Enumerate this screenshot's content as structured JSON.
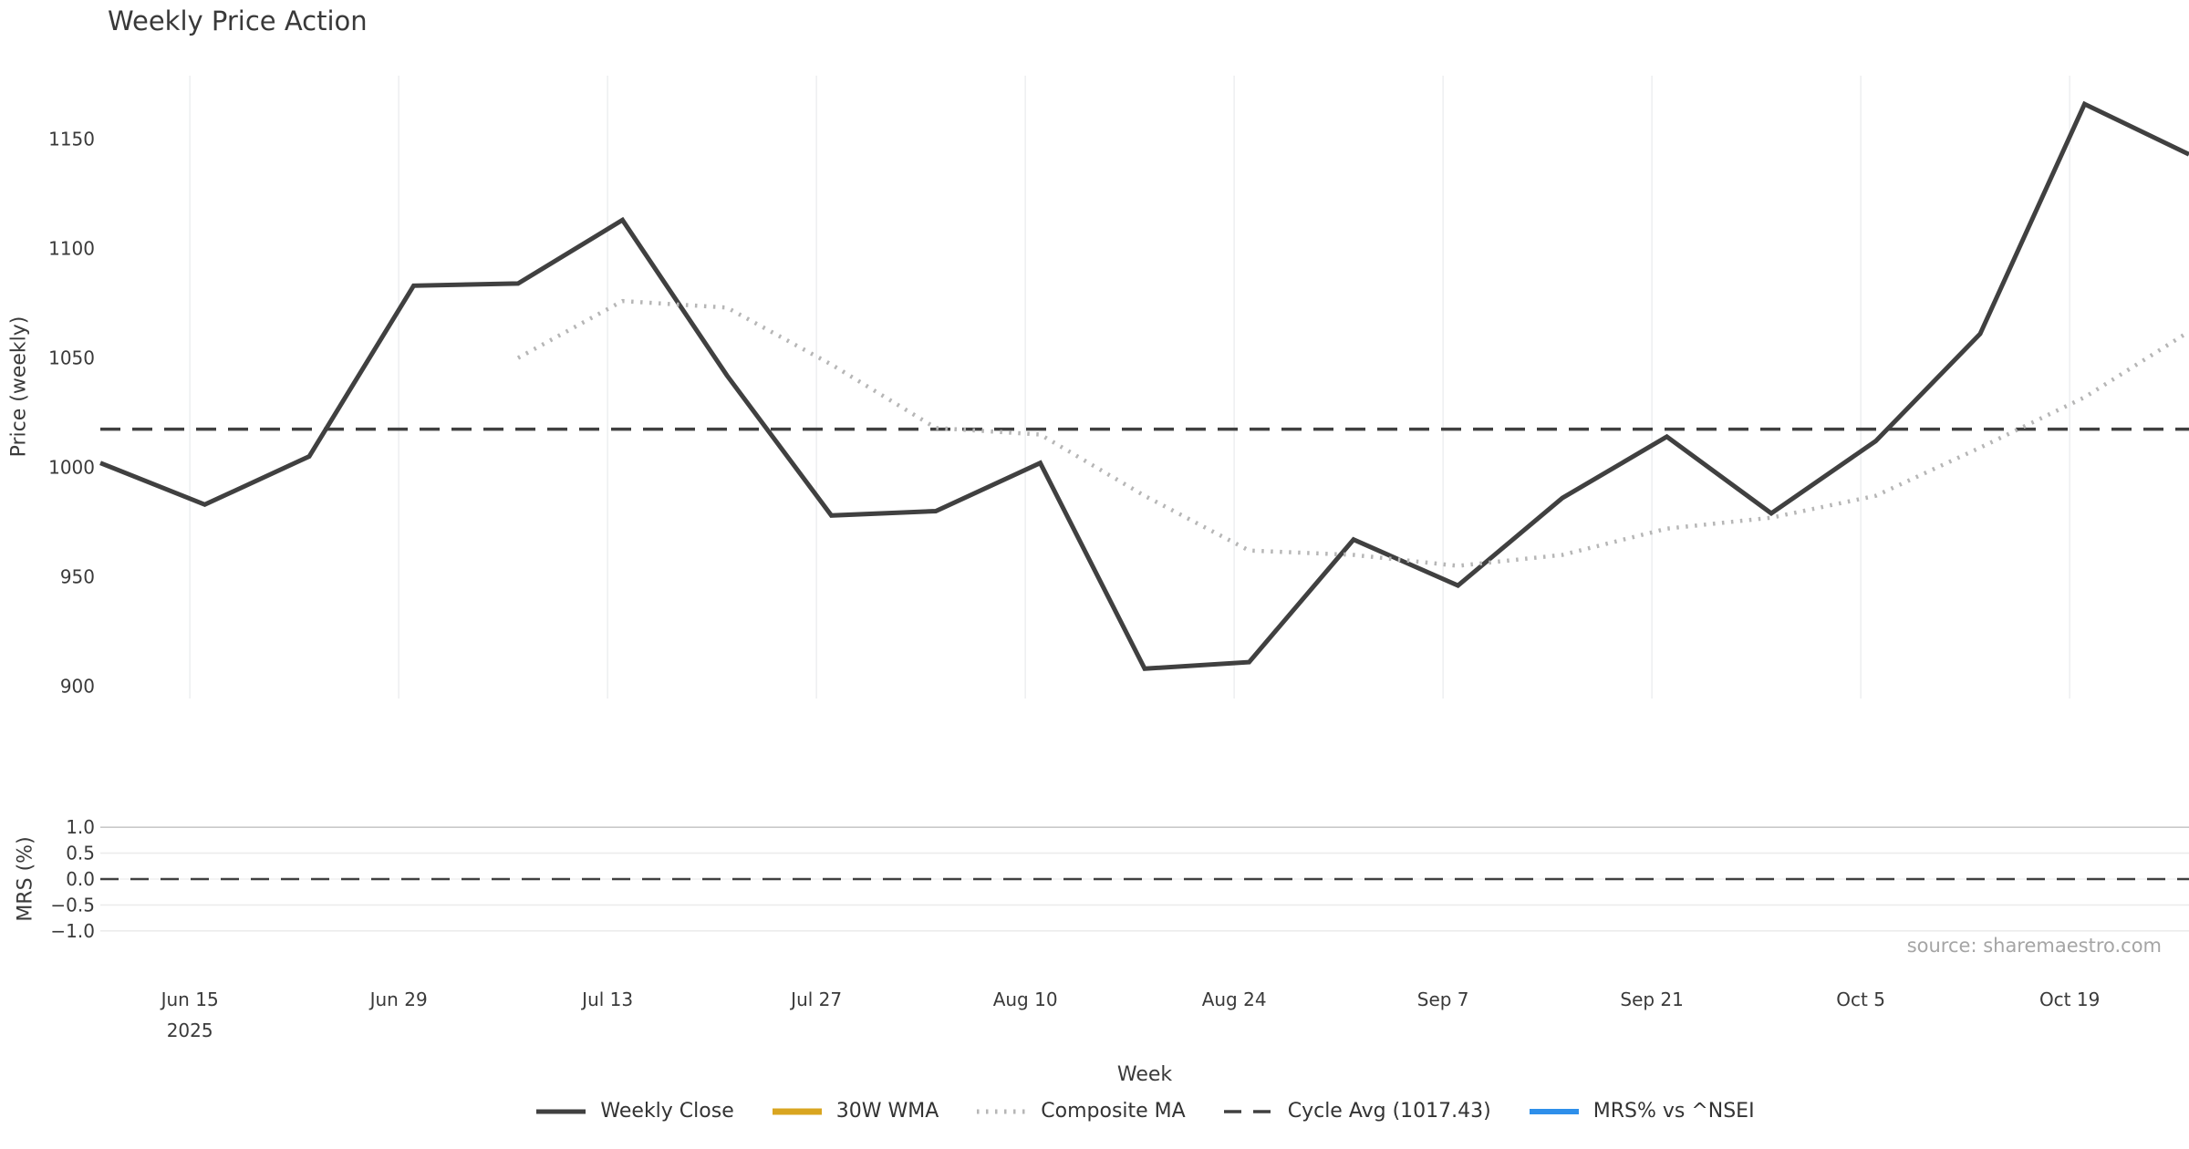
{
  "title": "Weekly Price Action",
  "source_note": "source: sharemaestro.com",
  "legend": {
    "position": "bottom",
    "items": [
      {
        "label": "Weekly Close",
        "color": "#404040",
        "style": "solid",
        "weight": 5
      },
      {
        "label": "30W WMA",
        "color": "#d9a520",
        "style": "solid",
        "weight": 7
      },
      {
        "label": "Composite MA",
        "color": "#b6b6b6",
        "style": "dotted",
        "weight": 5
      },
      {
        "label": "Cycle Avg (1017.43)",
        "color": "#404040",
        "style": "dashed",
        "weight": 3.5
      },
      {
        "label": "MRS% vs ^NSEI",
        "color": "#2e8fea",
        "style": "solid",
        "weight": 6
      }
    ]
  },
  "chart_data": [
    {
      "type": "line",
      "panel": "price",
      "title": "Weekly Price Action",
      "xlabel": "Week",
      "ylabel": "Price (weekly)",
      "ylim": [
        895,
        1179
      ],
      "yticks": [
        {
          "value": 1150,
          "label": "1150"
        },
        {
          "value": 1100,
          "label": "1100"
        },
        {
          "value": 1050,
          "label": "1050"
        },
        {
          "value": 1000,
          "label": "1000"
        },
        {
          "value": 950,
          "label": "950"
        },
        {
          "value": 900,
          "label": "900"
        }
      ],
      "x_dates": [
        "Jun 9",
        "Jun 16",
        "Jun 23",
        "Jun 30",
        "Jul 7",
        "Jul 14",
        "Jul 21",
        "Jul 28",
        "Aug 4",
        "Aug 11",
        "Aug 18",
        "Aug 25",
        "Sep 1",
        "Sep 8",
        "Sep 15",
        "Sep 22",
        "Sep 29",
        "Oct 6",
        "Oct 13",
        "Oct 20",
        "Oct 27"
      ],
      "x_ticks": [
        {
          "label": "Jun 15",
          "sublabel": "2025",
          "day": 6
        },
        {
          "label": "Jun 29",
          "day": 20
        },
        {
          "label": "Jul 13",
          "day": 34
        },
        {
          "label": "Jul 27",
          "day": 48
        },
        {
          "label": "Aug 10",
          "day": 62
        },
        {
          "label": "Aug 24",
          "day": 76
        },
        {
          "label": "Sep 7",
          "day": 90
        },
        {
          "label": "Sep 21",
          "day": 104
        },
        {
          "label": "Oct 5",
          "day": 118
        },
        {
          "label": "Oct 19",
          "day": 132
        }
      ],
      "x_gridlines": true,
      "y_gridlines": false,
      "series": [
        {
          "name": "Weekly Close",
          "color": "#404040",
          "style": "solid",
          "width": 5,
          "values": [
            1002,
            983,
            1005,
            1083,
            1084,
            1113,
            1042,
            978,
            980,
            1002,
            908,
            911,
            967,
            946,
            986,
            1014,
            979,
            1012,
            1061,
            1166,
            1143
          ]
        },
        {
          "name": "30W WMA",
          "color": "#d9a520",
          "style": "solid",
          "width": 5,
          "values": []
        },
        {
          "name": "Composite MA",
          "color": "#b6b6b6",
          "style": "dotted",
          "width": 4.5,
          "values": [
            null,
            null,
            null,
            null,
            1050,
            1076,
            1073,
            1047,
            1018,
            1015,
            987,
            962,
            960,
            955,
            960,
            972,
            977,
            987,
            1009,
            1032,
            1062
          ]
        },
        {
          "name": "Cycle Avg (1017.43)",
          "color": "#404040",
          "style": "dashed",
          "width": 3.5,
          "constant": 1017.43
        }
      ]
    },
    {
      "type": "line",
      "panel": "mrs",
      "xlabel": "",
      "ylabel": "MRS (%)",
      "ylim": [
        -1.1,
        1.1
      ],
      "yticks": [
        {
          "value": 1.0,
          "label": "1.0"
        },
        {
          "value": 0.5,
          "label": "0.5"
        },
        {
          "value": 0.0,
          "label": "0.0"
        },
        {
          "value": -0.5,
          "label": "−0.5"
        },
        {
          "value": -1.0,
          "label": "−1.0"
        }
      ],
      "x_gridlines": false,
      "y_gridlines": true,
      "series": [
        {
          "name": "MRS% vs ^NSEI",
          "color": "#2e8fea",
          "style": "solid",
          "width": 5,
          "values": []
        },
        {
          "name": "Zero line",
          "color": "#404040",
          "style": "dashed",
          "width": 2.5,
          "constant": 0.0
        }
      ]
    }
  ]
}
